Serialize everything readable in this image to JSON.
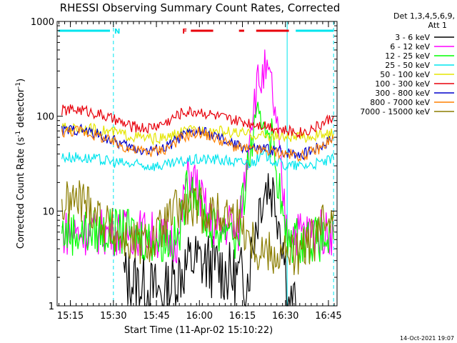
{
  "chart_data": {
    "type": "line",
    "title": "RHESSI Observing Summary Count Rates, Corrected",
    "xlabel": "Start Time (11-Apr-02 15:10:22)",
    "ylabel_main": "Corrected Count Rate (s",
    "ylabel_sup1": "-1",
    "ylabel_mid": " detector",
    "ylabel_sup2": "-1",
    "ylabel_end": ")",
    "yscale": "log",
    "ylim": [
      1,
      1000
    ],
    "xlim": [
      15.1728,
      16.8
    ],
    "x_unit": "decimal hours UT",
    "y_ticks": [
      {
        "v": 1,
        "label": "1"
      },
      {
        "v": 10,
        "label": "10"
      },
      {
        "v": 100,
        "label": "100"
      },
      {
        "v": 1000,
        "label": "1000"
      }
    ],
    "x_ticks": [
      {
        "v": 15.25,
        "label": "15:15"
      },
      {
        "v": 15.5,
        "label": "15:30"
      },
      {
        "v": 15.75,
        "label": "15:45"
      },
      {
        "v": 16.0,
        "label": "16:00"
      },
      {
        "v": 16.25,
        "label": "16:15"
      },
      {
        "v": 16.5,
        "label": "16:30"
      },
      {
        "v": 16.75,
        "label": "16:45"
      }
    ],
    "legend_header": [
      "Det 1,3,4,5,6,9,",
      "Att 1"
    ],
    "timestamp": "14-Oct-2021 19:07",
    "flags": [
      {
        "label": "N",
        "color": "#00e5ee",
        "segments": [
          [
            15.18,
            15.48
          ],
          [
            16.56,
            16.78
          ]
        ]
      },
      {
        "label": "F",
        "color": "#e8000b",
        "segments": [
          [
            15.95,
            16.08
          ],
          [
            16.23,
            16.26
          ],
          [
            16.33,
            16.52
          ]
        ]
      }
    ],
    "markers": [
      {
        "x": 15.5,
        "color": "#00e5ee",
        "style": "dashed"
      },
      {
        "x": 16.51,
        "color": "#00e5ee",
        "style": "solid"
      },
      {
        "x": 16.78,
        "color": "#00e5ee",
        "style": "dashed"
      }
    ],
    "series": [
      {
        "name": "3 - 6 keV",
        "color": "#000000",
        "x": [
          15.56,
          15.62,
          15.7,
          15.8,
          15.88,
          15.96,
          16.04,
          16.12,
          16.2,
          16.28,
          16.32,
          16.36,
          16.4,
          16.44,
          16.48,
          16.52,
          16.56
        ],
        "y": [
          2,
          1.8,
          1.5,
          1.3,
          2.2,
          3,
          2.8,
          2.5,
          2,
          2,
          6,
          15,
          20,
          14,
          6,
          1,
          1
        ]
      },
      {
        "name": "6 - 12 keV",
        "color": "#ff00ff",
        "x": [
          15.2,
          15.3,
          15.4,
          15.5,
          15.6,
          15.7,
          15.8,
          15.88,
          15.92,
          15.96,
          16.0,
          16.06,
          16.12,
          16.18,
          16.22,
          16.26,
          16.3,
          16.34,
          16.38,
          16.42,
          16.46,
          16.5,
          16.54,
          16.58,
          16.62,
          16.7,
          16.78
        ],
        "y": [
          6,
          6,
          6,
          6,
          6,
          6,
          5,
          5,
          20,
          25,
          15,
          8,
          6,
          8,
          5,
          20,
          100,
          220,
          290,
          200,
          50,
          8,
          6,
          6,
          6,
          6,
          6
        ]
      },
      {
        "name": "12 - 25 keV",
        "color": "#00ff00",
        "x": [
          15.2,
          15.3,
          15.4,
          15.5,
          15.6,
          15.7,
          15.8,
          15.88,
          15.92,
          15.96,
          16.0,
          16.06,
          16.12,
          16.18,
          16.22,
          16.26,
          16.3,
          16.34,
          16.38,
          16.42,
          16.46,
          16.5,
          16.54,
          16.58,
          16.62,
          16.7,
          16.78
        ],
        "y": [
          6,
          6,
          6,
          6,
          6,
          5,
          5,
          5,
          15,
          20,
          12,
          7,
          6,
          8,
          4,
          15,
          50,
          80,
          100,
          60,
          20,
          5,
          5,
          5,
          5,
          5,
          5
        ]
      },
      {
        "name": "25 - 50 keV",
        "color": "#00e5ee",
        "x": [
          15.2,
          15.3,
          15.4,
          15.5,
          15.6,
          15.7,
          15.8,
          15.9,
          16.0,
          16.1,
          16.2,
          16.3,
          16.38,
          16.42,
          16.5,
          16.6,
          16.7,
          16.78
        ],
        "y": [
          37,
          37,
          35,
          33,
          31,
          30,
          30,
          33,
          35,
          35,
          33,
          32,
          40,
          35,
          30,
          30,
          32,
          35
        ]
      },
      {
        "name": "50 - 100 keV",
        "color": "#e5e500",
        "x": [
          15.2,
          15.3,
          15.4,
          15.5,
          15.6,
          15.7,
          15.8,
          15.9,
          16.0,
          16.1,
          16.2,
          16.3,
          16.4,
          16.5,
          16.6,
          16.7,
          16.78
        ],
        "y": [
          75,
          75,
          72,
          68,
          62,
          58,
          58,
          68,
          72,
          70,
          67,
          64,
          62,
          60,
          60,
          63,
          65
        ]
      },
      {
        "name": "100 - 300 keV",
        "color": "#e8000b",
        "x": [
          15.2,
          15.3,
          15.4,
          15.5,
          15.6,
          15.7,
          15.8,
          15.9,
          16.0,
          16.1,
          16.2,
          16.3,
          16.4,
          16.5,
          16.6,
          16.7,
          16.78
        ],
        "y": [
          115,
          118,
          108,
          92,
          78,
          75,
          85,
          110,
          113,
          100,
          90,
          85,
          80,
          70,
          68,
          80,
          100
        ]
      },
      {
        "name": "300 - 800 keV",
        "color": "#0000cc",
        "x": [
          15.2,
          15.3,
          15.4,
          15.5,
          15.6,
          15.7,
          15.8,
          15.9,
          16.0,
          16.1,
          16.2,
          16.3,
          16.4,
          16.5,
          16.6,
          16.7,
          16.78
        ],
        "y": [
          70,
          73,
          65,
          55,
          47,
          43,
          46,
          62,
          70,
          60,
          50,
          45,
          45,
          42,
          40,
          48,
          60
        ]
      },
      {
        "name": "800 - 7000 keV",
        "color": "#ff8000",
        "x": [
          15.2,
          15.3,
          15.4,
          15.5,
          15.6,
          15.7,
          15.8,
          15.9,
          16.0,
          16.1,
          16.2,
          16.3,
          16.4,
          16.5,
          16.6,
          16.7,
          16.78
        ],
        "y": [
          68,
          71,
          63,
          53,
          45,
          42,
          45,
          60,
          68,
          58,
          48,
          44,
          43,
          40,
          38,
          46,
          58
        ]
      },
      {
        "name": "7000 - 15000 keV",
        "color": "#8b7d00",
        "x": [
          15.2,
          15.26,
          15.32,
          15.38,
          15.44,
          15.5,
          15.56,
          15.62,
          15.68,
          15.74,
          15.8,
          15.86,
          15.92,
          15.98,
          16.04,
          16.1,
          16.16,
          16.22,
          16.28,
          16.34,
          16.4,
          16.46,
          16.52,
          16.58,
          16.64,
          16.7,
          16.76,
          16.78
        ],
        "y": [
          11,
          12.5,
          13,
          11,
          8,
          6,
          5,
          4.5,
          4.5,
          5,
          7,
          10,
          10.5,
          10.5,
          10,
          9,
          9.5,
          8,
          6,
          4,
          3.8,
          3.5,
          3.5,
          3.5,
          4.5,
          6,
          10,
          10
        ]
      }
    ]
  }
}
